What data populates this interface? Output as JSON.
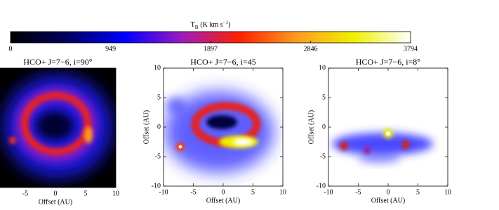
{
  "chart_data": [
    {
      "type": "colorbar",
      "label": {
        "symbol": "T",
        "symbol_sub": "B",
        "unit": "(K km s",
        "unit_sup": "−1",
        "unit_close": ")"
      },
      "xlim": [
        0,
        3794
      ],
      "xticks": [
        0,
        949,
        1897,
        2846,
        3794
      ],
      "colors": [
        "#000000",
        "#000060",
        "#0000ff",
        "#9b1bbf",
        "#ff2000",
        "#ff9a20",
        "#f0f000",
        "#ffffff"
      ]
    },
    {
      "type": "image",
      "title": "HCO+ J=7−6, i=90°",
      "xlabel": "Offset (AU)",
      "xlim": [
        -10,
        10
      ],
      "ylim": [
        -10,
        10
      ],
      "xticks": [
        -5,
        0,
        5,
        10
      ]
    },
    {
      "type": "image",
      "title": "HCO+ J=7−6, i=45",
      "xlabel": "Offset (AU)",
      "ylabel": "Offset (AU)",
      "xlim": [
        -10,
        10
      ],
      "ylim": [
        -10,
        10
      ],
      "xticks": [
        -10,
        -5,
        0,
        5,
        10
      ],
      "yticks": [
        -10,
        -5,
        0,
        5,
        10
      ]
    },
    {
      "type": "image",
      "title": "HCO+ J=7−6, i=8°",
      "xlabel": "Offset (AU)",
      "ylabel": "Offset (AU)",
      "xlim": [
        -10,
        10
      ],
      "ylim": [
        -10,
        10
      ],
      "xticks": [
        -10,
        -5,
        0,
        5,
        10
      ],
      "yticks": [
        -10,
        -5,
        0,
        5,
        10
      ]
    }
  ]
}
